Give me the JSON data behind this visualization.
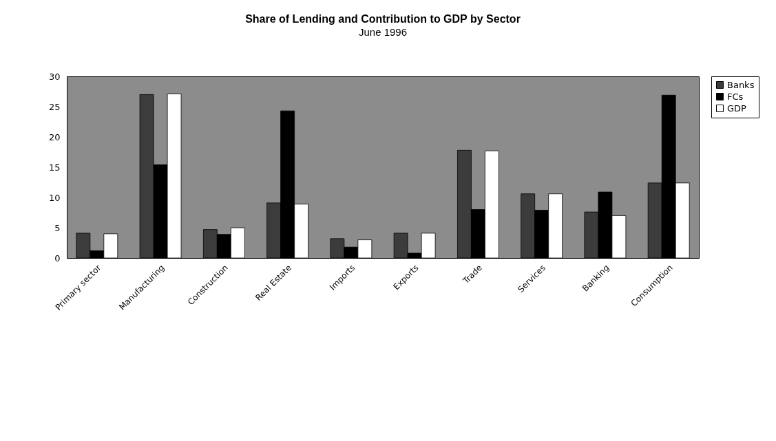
{
  "chart_data": {
    "type": "bar",
    "title": "Share of Lending and Contribution to GDP by Sector",
    "subtitle": "June 1996",
    "categories": [
      "Primary sector",
      "Manufacturing",
      "Construction",
      "Real Estate",
      "Imports",
      "Exports",
      "Trade",
      "Services",
      "Banking",
      "Consumption"
    ],
    "series": [
      {
        "name": "Banks",
        "color": "#3c3c3c",
        "values": [
          4.1,
          27,
          4.7,
          9.1,
          3.2,
          4.1,
          17.8,
          10.6,
          7.6,
          12.4
        ]
      },
      {
        "name": "FCs",
        "color": "#000000",
        "values": [
          1.2,
          15.4,
          3.9,
          24.3,
          1.8,
          0.8,
          8,
          7.9,
          10.9,
          26.9
        ]
      },
      {
        "name": "GDP",
        "color": "#ffffff",
        "values": [
          4,
          27.1,
          5,
          8.9,
          3,
          4.1,
          17.7,
          10.6,
          7,
          12.4
        ]
      }
    ],
    "ylim": [
      0,
      30
    ],
    "yticks": [
      0,
      5,
      10,
      15,
      20,
      25,
      30
    ],
    "grid": false,
    "legend": "right"
  }
}
